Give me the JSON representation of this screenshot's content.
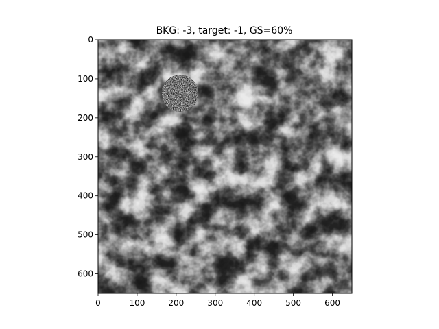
{
  "chart_data": {
    "type": "heatmap",
    "title": "BKG: -3, target: -1, GS=60%",
    "xlabel": "",
    "ylabel": "",
    "xlim": [
      0,
      650
    ],
    "ylim": [
      650,
      0
    ],
    "xticks": [
      0,
      100,
      200,
      300,
      400,
      500,
      600
    ],
    "yticks": [
      0,
      100,
      200,
      300,
      400,
      500,
      600
    ],
    "colormap": "gray",
    "grid": false,
    "background_texture": "clustered gray noise (log-normal background)",
    "target": {
      "shape": "circle",
      "center_x": 210,
      "center_y": 137,
      "radius": 47,
      "texture": "fine speckle noise"
    }
  },
  "colors": {
    "frame": "#000000",
    "dark": "#1c1c1c",
    "light": "#f4f4f4"
  }
}
